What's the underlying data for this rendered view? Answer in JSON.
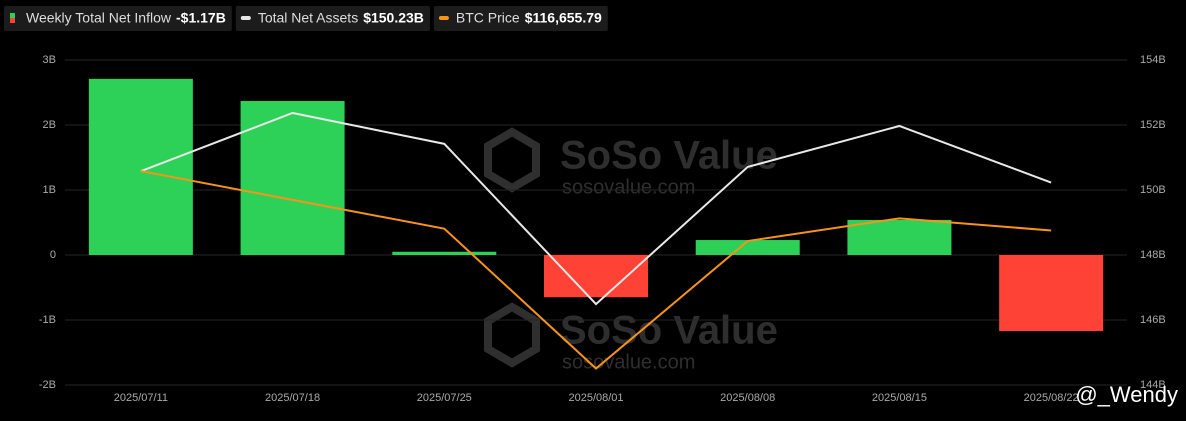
{
  "chart_data": {
    "type": "bar",
    "categories": [
      "2025/07/11",
      "2025/07/18",
      "2025/07/25",
      "2025/08/01",
      "2025/08/08",
      "2025/08/15",
      "2025/08/22"
    ],
    "series": [
      {
        "name": "Weekly Total Net Inflow",
        "type": "bar",
        "positive_color": "#2ed158",
        "negative_color": "#ff4136",
        "values": [
          2.71,
          2.37,
          0.05,
          -0.65,
          0.23,
          0.54,
          -1.17
        ],
        "legend_value": "-$1.17B"
      },
      {
        "name": "Total Net Assets",
        "type": "line",
        "axis": "y2",
        "color": "#e8e8e8",
        "values": [
          150.58,
          152.37,
          151.42,
          146.49,
          150.71,
          151.97,
          150.23
        ],
        "legend_value": "$150.23B"
      },
      {
        "name": "BTC Price",
        "type": "line",
        "axis": "y3",
        "color": "#f7931a",
        "values": [
          118100,
          117400,
          116700,
          113300,
          116400,
          116950,
          116655.79
        ],
        "legend_value": "$116,655.79"
      }
    ],
    "ylim": [
      -2,
      3
    ],
    "yticks": [
      {
        "value": -2,
        "label": "-2B"
      },
      {
        "value": -1,
        "label": "-1B"
      },
      {
        "value": 0,
        "label": "0"
      },
      {
        "value": 1,
        "label": "1B"
      },
      {
        "value": 2,
        "label": "2B"
      },
      {
        "value": 3,
        "label": "3B"
      }
    ],
    "y2lim": [
      144,
      154
    ],
    "y2ticks": [
      {
        "value": 144,
        "label": "144B"
      },
      {
        "value": 146,
        "label": "146B"
      },
      {
        "value": 148,
        "label": "148B"
      },
      {
        "value": 150,
        "label": "150B"
      },
      {
        "value": 152,
        "label": "152B"
      },
      {
        "value": 154,
        "label": "154B"
      }
    ],
    "y3lim": [
      112900,
      120800
    ],
    "grid": true,
    "watermarks": [
      "SoSo Value",
      "sosovalue.com",
      "SoSo Value",
      "sosovalue.com"
    ],
    "credit": "@_Wendy"
  }
}
